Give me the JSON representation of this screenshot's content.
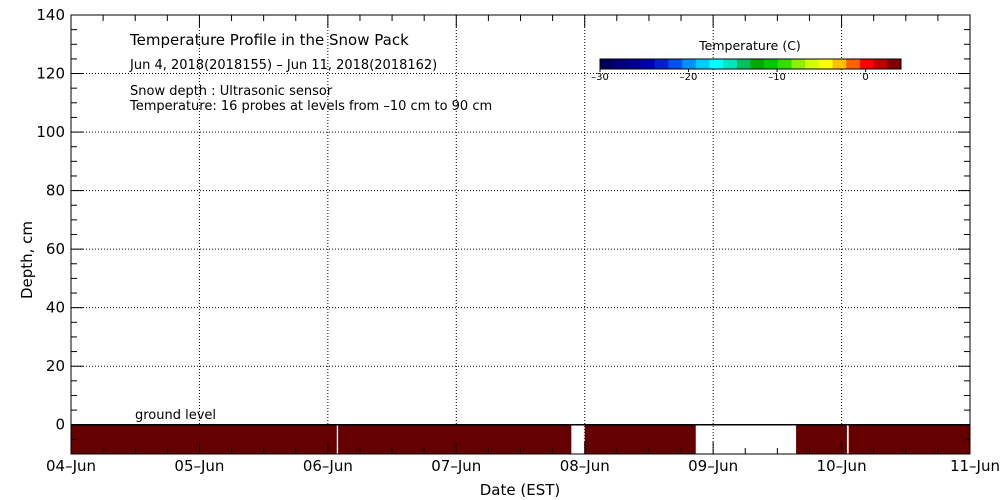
{
  "chart_data": {
    "type": "heatmap",
    "title": "Temperature Profile in the Snow Pack",
    "subtitle": "Jun  4, 2018(2018155) – Jun 11, 2018(2018162)",
    "notes": [
      "Snow depth : Ultrasonic sensor",
      "Temperature: 16 probes at levels from –10 cm to 90 cm"
    ],
    "xlabel": "Date (EST)",
    "ylabel": "Depth, cm",
    "x_ticks": [
      "04–Jun",
      "05–Jun",
      "06–Jun",
      "07–Jun",
      "08–Jun",
      "09–Jun",
      "10–Jun",
      "11–Jun"
    ],
    "xlim": [
      "2018-06-04",
      "2018-06-11"
    ],
    "y_ticks": [
      "0",
      "20",
      "40",
      "60",
      "80",
      "100",
      "120",
      "140"
    ],
    "ylim": [
      -10,
      140
    ],
    "grid": true,
    "ground_label": "ground level",
    "colorbar": {
      "title": "Temperature (C)",
      "range": [
        -30,
        4
      ],
      "tick_labels": [
        "–30",
        "–20",
        "–10",
        "0"
      ],
      "tick_values": [
        -30,
        -20,
        -10,
        0
      ],
      "colors": [
        "#000060",
        "#00007a",
        "#000090",
        "#0000b0",
        "#0020d0",
        "#0050f0",
        "#0090ff",
        "#00d0ff",
        "#00ffff",
        "#00e8c0",
        "#00c060",
        "#00a800",
        "#00c800",
        "#30e000",
        "#90f000",
        "#d0ff00",
        "#ffff00",
        "#ffc000",
        "#ff6000",
        "#ff0000",
        "#c00000",
        "#800000"
      ]
    },
    "ground_series": [
      {
        "x0": "2018-06-04T00:00",
        "x1": "2018-06-06T01:40",
        "y0": -10,
        "y1": 0,
        "color": "#650000"
      },
      {
        "x0": "2018-06-06T01:55",
        "x1": "2018-06-07T21:30",
        "y0": -10,
        "y1": 0,
        "color": "#650000"
      },
      {
        "x0": "2018-06-08T00:00",
        "x1": "2018-06-08T20:45",
        "y0": -10,
        "y1": 0,
        "color": "#650000"
      },
      {
        "x0": "2018-06-09T15:30",
        "x1": "2018-06-10T01:00",
        "y0": -10,
        "y1": 0,
        "color": "#650000"
      },
      {
        "x0": "2018-06-10T01:20",
        "x1": "2018-06-11T00:00",
        "y0": -10,
        "y1": 0,
        "color": "#650000"
      }
    ]
  }
}
